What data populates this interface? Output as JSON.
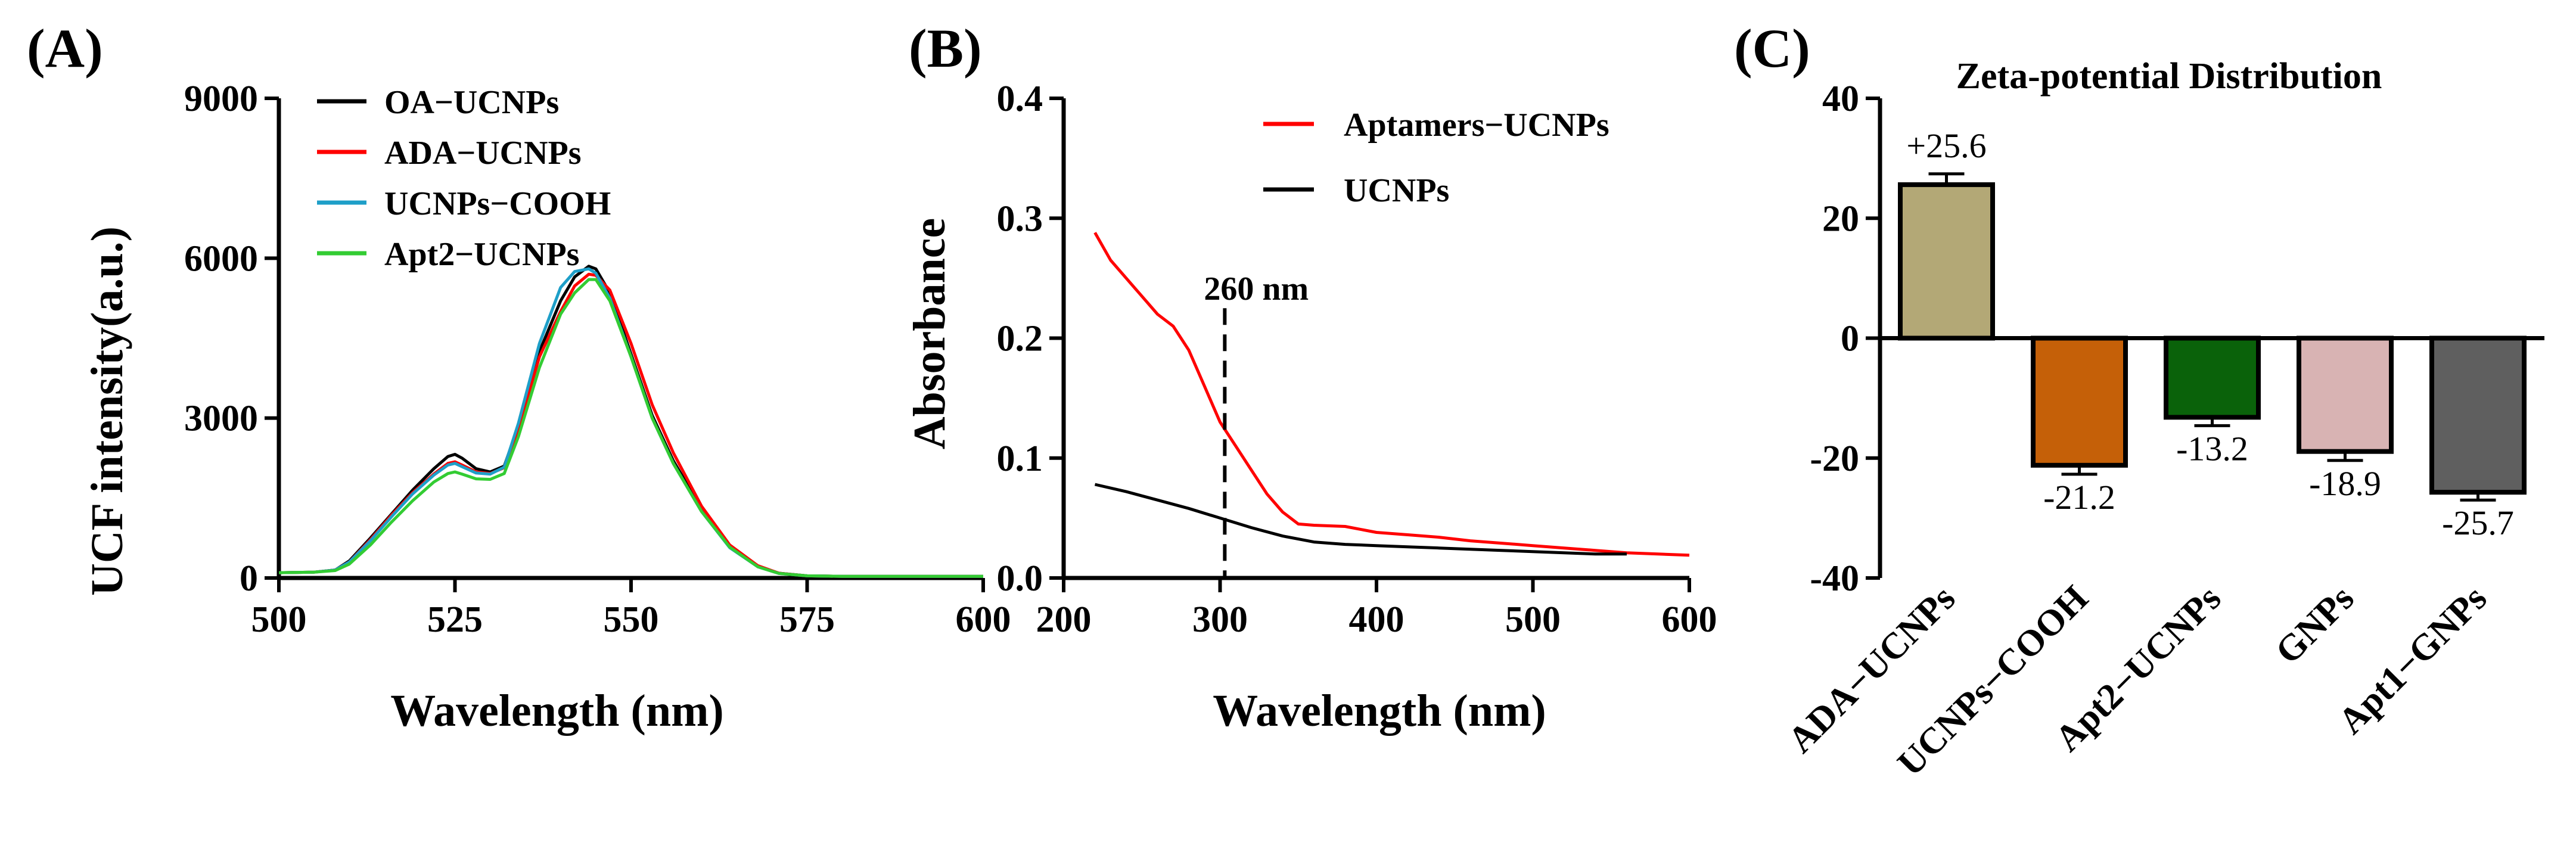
{
  "chart_data": [
    {
      "panel": "(A)",
      "type": "line",
      "title": "",
      "xlabel": "Wavelength (nm)",
      "ylabel": "UCF intensity(a.u.)",
      "xlim": [
        500,
        600
      ],
      "ylim": [
        0,
        9000
      ],
      "xticks": [
        500,
        525,
        550,
        575,
        600
      ],
      "yticks": [
        0,
        3000,
        6000,
        9000
      ],
      "legend_position": "top-left",
      "series": [
        {
          "name": "OA−UCNPs",
          "color": "#000000",
          "x": [
            500,
            505,
            508,
            510,
            513,
            516,
            519,
            522,
            524,
            525,
            526,
            528,
            530,
            532,
            534,
            537,
            540,
            542,
            544,
            545,
            547,
            550,
            553,
            556,
            560,
            564,
            568,
            571,
            575,
            580,
            590,
            600
          ],
          "y": [
            100,
            110,
            150,
            320,
            750,
            1200,
            1650,
            2050,
            2280,
            2320,
            2250,
            2050,
            1990,
            2100,
            2850,
            4250,
            5200,
            5650,
            5850,
            5800,
            5350,
            4200,
            3050,
            2200,
            1300,
            600,
            220,
            90,
            40,
            30,
            30,
            30
          ]
        },
        {
          "name": "ADA−UCNPs",
          "color": "#ff0000",
          "x": [
            500,
            505,
            508,
            510,
            513,
            516,
            519,
            522,
            524,
            525,
            526,
            528,
            530,
            532,
            534,
            537,
            540,
            542,
            544,
            545,
            547,
            550,
            553,
            556,
            560,
            564,
            568,
            571,
            575,
            580,
            590,
            600
          ],
          "y": [
            100,
            110,
            150,
            300,
            720,
            1180,
            1600,
            1950,
            2150,
            2180,
            2120,
            1990,
            1960,
            2070,
            2800,
            4150,
            5000,
            5480,
            5700,
            5680,
            5400,
            4400,
            3250,
            2350,
            1350,
            620,
            230,
            90,
            40,
            30,
            30,
            30
          ]
        },
        {
          "name": "UCNPs−COOH",
          "color": "#1e9fc8",
          "x": [
            500,
            505,
            508,
            510,
            513,
            516,
            519,
            522,
            524,
            525,
            526,
            528,
            530,
            532,
            534,
            537,
            540,
            542,
            544,
            545,
            547,
            550,
            553,
            556,
            560,
            564,
            568,
            571,
            575,
            580,
            590,
            600
          ],
          "y": [
            100,
            110,
            150,
            300,
            700,
            1150,
            1580,
            1930,
            2120,
            2150,
            2090,
            1970,
            1950,
            2080,
            2900,
            4400,
            5450,
            5750,
            5800,
            5720,
            5250,
            4150,
            3000,
            2150,
            1250,
            570,
            210,
            85,
            40,
            30,
            30,
            30
          ]
        },
        {
          "name": "Apt2−UCNPs",
          "color": "#33cc33",
          "x": [
            500,
            505,
            508,
            510,
            513,
            516,
            519,
            522,
            524,
            525,
            526,
            528,
            530,
            532,
            534,
            537,
            540,
            542,
            544,
            545,
            547,
            550,
            553,
            556,
            560,
            564,
            568,
            571,
            575,
            580,
            590,
            600
          ],
          "y": [
            100,
            110,
            140,
            260,
            620,
            1050,
            1450,
            1800,
            1960,
            1990,
            1950,
            1860,
            1850,
            1960,
            2650,
            3950,
            4950,
            5350,
            5600,
            5600,
            5200,
            4150,
            3000,
            2150,
            1250,
            580,
            210,
            85,
            40,
            30,
            30,
            30
          ]
        }
      ]
    },
    {
      "panel": "(B)",
      "type": "line",
      "title": "",
      "xlabel": "Wavelength (nm)",
      "ylabel": "Absorbance",
      "xlim": [
        200,
        600
      ],
      "ylim": [
        0,
        0.4
      ],
      "xticks": [
        200,
        300,
        400,
        500,
        600
      ],
      "yticks": [
        0.0,
        0.1,
        0.2,
        0.3,
        0.4
      ],
      "ytick_labels": [
        "0.0",
        "0.1",
        "0.2",
        "0.3",
        "0.4"
      ],
      "legend_position": "top-right",
      "annotation": {
        "text": "260 nm",
        "x": 303
      },
      "series": [
        {
          "name": "Aptamers−UCNPs",
          "color": "#ff0000",
          "x": [
            220,
            230,
            240,
            250,
            260,
            270,
            280,
            290,
            300,
            310,
            320,
            330,
            340,
            350,
            360,
            380,
            400,
            420,
            440,
            460,
            480,
            500,
            520,
            540,
            560,
            580,
            600
          ],
          "y": [
            0.288,
            0.265,
            0.25,
            0.235,
            0.22,
            0.21,
            0.19,
            0.16,
            0.13,
            0.11,
            0.09,
            0.07,
            0.055,
            0.045,
            0.044,
            0.043,
            0.038,
            0.036,
            0.034,
            0.031,
            0.029,
            0.027,
            0.025,
            0.023,
            0.021,
            0.02,
            0.019
          ]
        },
        {
          "name": "UCNPs",
          "color": "#000000",
          "x": [
            220,
            240,
            260,
            280,
            300,
            320,
            340,
            360,
            380,
            400,
            420,
            440,
            460,
            480,
            500,
            520,
            540,
            560
          ],
          "y": [
            0.078,
            0.072,
            0.065,
            0.058,
            0.05,
            0.042,
            0.035,
            0.03,
            0.028,
            0.027,
            0.026,
            0.025,
            0.024,
            0.023,
            0.022,
            0.021,
            0.02,
            0.02
          ]
        }
      ]
    },
    {
      "panel": "(C)",
      "type": "bar",
      "title": "Zeta-potential Distribution",
      "xlabel": "",
      "ylabel": "",
      "ylim": [
        -40,
        40
      ],
      "yticks": [
        -40,
        -20,
        0,
        20,
        40
      ],
      "categories": [
        "ADA−UCNPs",
        "UCNPs−COOH",
        "Apt2−UCNPs",
        "GNPs",
        "Apt1−GNPs"
      ],
      "values": [
        25.6,
        -21.2,
        -13.2,
        -18.9,
        -25.7
      ],
      "errors": [
        1.8,
        1.5,
        1.4,
        1.5,
        1.3
      ],
      "value_labels": [
        "+25.6",
        "-21.2",
        "-13.2",
        "-18.9",
        "-25.7"
      ],
      "colors": [
        "#b3a876",
        "#c56008",
        "#0a620a",
        "#d8b3b3",
        "#5f5f5f"
      ]
    }
  ]
}
